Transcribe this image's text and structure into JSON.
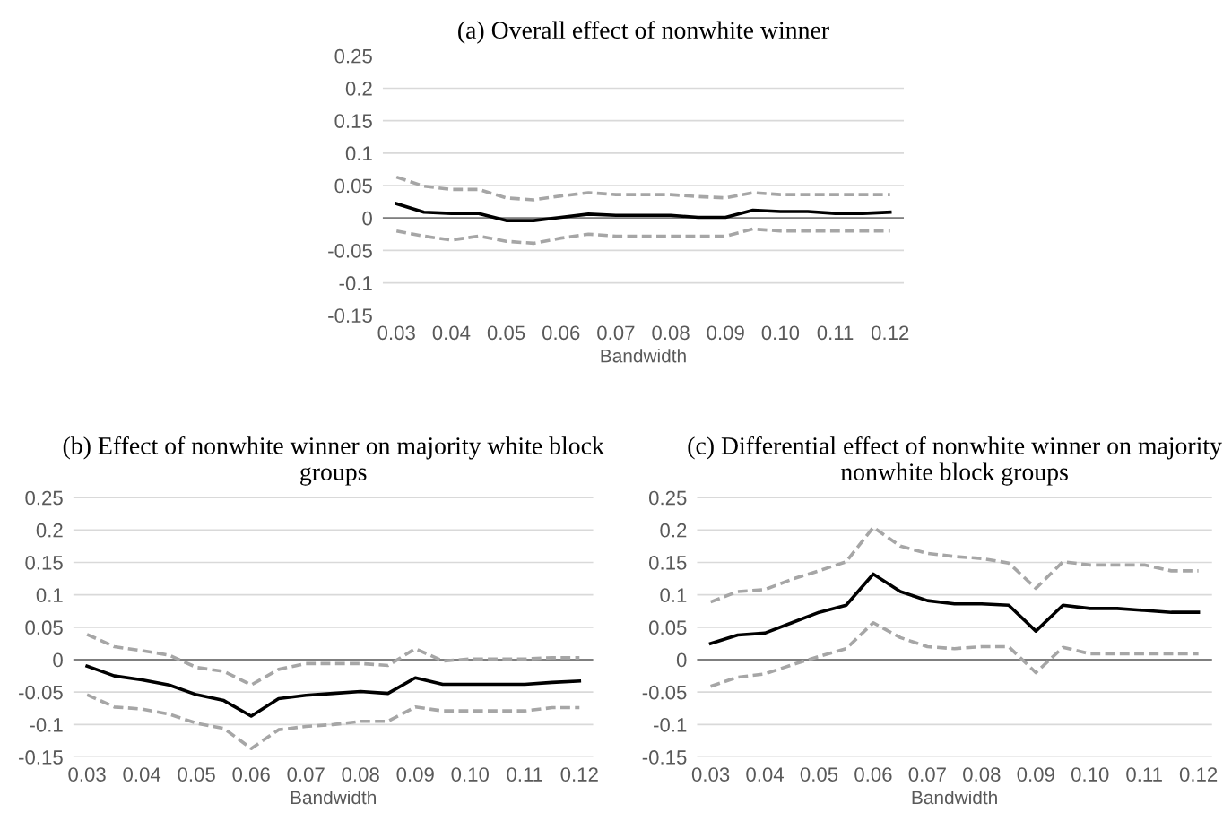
{
  "chart_data": [
    {
      "type": "line",
      "title": "(a) Overall effect of nonwhite winner",
      "xlabel": "Bandwidth",
      "categories": [
        "0.03",
        null,
        "0.04",
        null,
        "0.05",
        null,
        "0.06",
        null,
        "0.07",
        null,
        "0.08",
        null,
        "0.09",
        null,
        "0.10",
        null,
        "0.11",
        null,
        "0.12"
      ],
      "ylim": [
        -0.15,
        0.25
      ],
      "yticks": [
        -0.15,
        -0.1,
        -0.05,
        0,
        0.05,
        0.1,
        0.15,
        0.2,
        0.25
      ],
      "grid": "y",
      "legend": false,
      "ref_lines": [
        {
          "axis": "y",
          "value": 0,
          "color": "#7f7f7f"
        }
      ],
      "series": [
        {
          "color": "#a6a6a6",
          "line_style": "dashed",
          "values": [
            0.063,
            0.049,
            0.044,
            0.044,
            0.031,
            0.028,
            0.034,
            0.039,
            0.036,
            0.036,
            0.036,
            0.033,
            0.031,
            0.039,
            0.036,
            0.036,
            0.036,
            0.036,
            0.036
          ]
        },
        {
          "color": "#a6a6a6",
          "line_style": "dashed",
          "values": [
            -0.02,
            -0.028,
            -0.034,
            -0.028,
            -0.036,
            -0.039,
            -0.031,
            -0.025,
            -0.028,
            -0.028,
            -0.028,
            -0.028,
            -0.028,
            -0.017,
            -0.02,
            -0.02,
            -0.02,
            -0.02,
            -0.02
          ]
        },
        {
          "color": "#000000",
          "line_style": "solid",
          "values": [
            0.022,
            0.009,
            0.007,
            0.007,
            -0.004,
            -0.004,
            0.001,
            0.006,
            0.004,
            0.004,
            0.004,
            0.001,
            0.001,
            0.012,
            0.01,
            0.01,
            0.007,
            0.007,
            0.009
          ]
        }
      ]
    },
    {
      "type": "line",
      "title": "(b) Effect of nonwhite winner on majority white block groups",
      "xlabel": "Bandwidth",
      "categories": [
        "0.03",
        null,
        "0.04",
        null,
        "0.05",
        null,
        "0.06",
        null,
        "0.07",
        null,
        "0.08",
        null,
        "0.09",
        null,
        "0.10",
        null,
        "0.11",
        null,
        "0.12"
      ],
      "ylim": [
        -0.15,
        0.25
      ],
      "yticks": [
        -0.15,
        -0.1,
        -0.05,
        0,
        0.05,
        0.1,
        0.15,
        0.2,
        0.25
      ],
      "grid": "y",
      "legend": false,
      "ref_lines": [
        {
          "axis": "y",
          "value": 0,
          "color": "#7f7f7f"
        }
      ],
      "series": [
        {
          "color": "#a6a6a6",
          "line_style": "dashed",
          "values": [
            0.039,
            0.02,
            0.014,
            0.007,
            -0.012,
            -0.018,
            -0.039,
            -0.015,
            -0.006,
            -0.006,
            -0.006,
            -0.009,
            0.017,
            -0.002,
            0.001,
            0.001,
            0.001,
            0.003,
            0.003
          ]
        },
        {
          "color": "#a6a6a6",
          "line_style": "dashed",
          "values": [
            -0.054,
            -0.073,
            -0.076,
            -0.084,
            -0.098,
            -0.106,
            -0.137,
            -0.108,
            -0.103,
            -0.1,
            -0.095,
            -0.095,
            -0.073,
            -0.079,
            -0.079,
            -0.079,
            -0.079,
            -0.074,
            -0.074
          ]
        },
        {
          "color": "#000000",
          "line_style": "solid",
          "values": [
            -0.01,
            -0.025,
            -0.031,
            -0.039,
            -0.054,
            -0.063,
            -0.087,
            -0.06,
            -0.055,
            -0.052,
            -0.049,
            -0.052,
            -0.028,
            -0.038,
            -0.038,
            -0.038,
            -0.038,
            -0.035,
            -0.033
          ]
        }
      ]
    },
    {
      "type": "line",
      "title": "(c) Differential effect of nonwhite winner on majority nonwhite block groups",
      "xlabel": "Bandwidth",
      "categories": [
        "0.03",
        null,
        "0.04",
        null,
        "0.05",
        null,
        "0.06",
        null,
        "0.07",
        null,
        "0.08",
        null,
        "0.09",
        null,
        "0.10",
        null,
        "0.11",
        null,
        "0.12"
      ],
      "ylim": [
        -0.15,
        0.25
      ],
      "yticks": [
        -0.15,
        -0.1,
        -0.05,
        0,
        0.05,
        0.1,
        0.15,
        0.2,
        0.25
      ],
      "grid": "y",
      "legend": false,
      "ref_lines": [
        {
          "axis": "y",
          "value": 0,
          "color": "#7f7f7f"
        }
      ],
      "series": [
        {
          "color": "#a6a6a6",
          "line_style": "dashed",
          "values": [
            0.089,
            0.105,
            0.108,
            0.124,
            0.137,
            0.151,
            0.204,
            0.175,
            0.164,
            0.159,
            0.156,
            0.149,
            0.11,
            0.151,
            0.146,
            0.146,
            0.146,
            0.137,
            0.137
          ]
        },
        {
          "color": "#a6a6a6",
          "line_style": "dashed",
          "values": [
            -0.041,
            -0.027,
            -0.022,
            -0.008,
            0.005,
            0.017,
            0.057,
            0.034,
            0.02,
            0.017,
            0.02,
            0.02,
            -0.02,
            0.019,
            0.009,
            0.009,
            0.009,
            0.009,
            0.009
          ]
        },
        {
          "color": "#000000",
          "line_style": "solid",
          "values": [
            0.025,
            0.038,
            0.041,
            0.057,
            0.073,
            0.084,
            0.132,
            0.105,
            0.091,
            0.086,
            0.086,
            0.084,
            0.044,
            0.084,
            0.079,
            0.079,
            0.076,
            0.073,
            0.073
          ]
        }
      ]
    }
  ]
}
